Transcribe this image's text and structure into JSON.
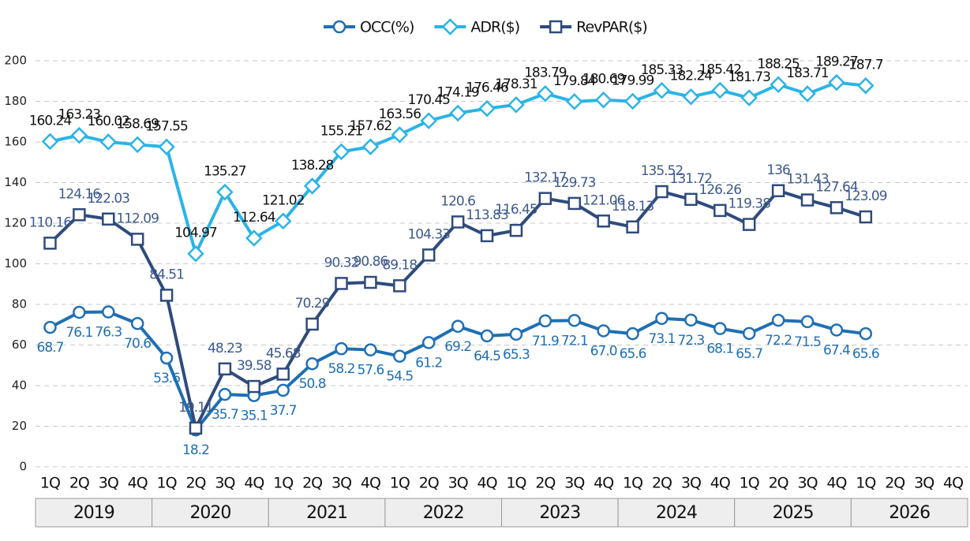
{
  "chart_data": {
    "type": "line",
    "categories": [
      "1Q",
      "2Q",
      "3Q",
      "4Q",
      "1Q",
      "2Q",
      "3Q",
      "4Q",
      "1Q",
      "2Q",
      "3Q",
      "4Q",
      "1Q",
      "2Q",
      "3Q",
      "4Q",
      "1Q",
      "2Q",
      "3Q",
      "4Q",
      "1Q",
      "2Q",
      "3Q",
      "4Q",
      "1Q",
      "2Q",
      "3Q",
      "4Q",
      "1Q",
      "2Q",
      "3Q",
      "4Q"
    ],
    "year_groups": [
      "2019",
      "2020",
      "2021",
      "2022",
      "2023",
      "2024",
      "2025",
      "2026"
    ],
    "ylim": [
      0,
      200
    ],
    "yticks": [
      0,
      20,
      40,
      60,
      80,
      100,
      120,
      140,
      160,
      180,
      200
    ],
    "grid": true,
    "series": [
      {
        "name": "OCC(%)",
        "color": "#1f6fb4",
        "marker": "circle",
        "values": [
          68.7,
          76.1,
          76.3,
          70.6,
          53.6,
          18.2,
          35.7,
          35.1,
          37.7,
          50.8,
          58.2,
          57.6,
          54.5,
          61.2,
          69.2,
          64.5,
          65.3,
          71.9,
          72.1,
          67.0,
          65.6,
          73.1,
          72.3,
          68.1,
          65.7,
          72.2,
          71.5,
          67.4,
          65.6,
          null,
          null,
          null
        ],
        "value_labels": [
          "68.7",
          "76.1",
          "76.3",
          "70.6",
          "53.6",
          "18.2",
          "35.7",
          "35.1",
          "37.7",
          "50.8",
          "58.2",
          "57.6",
          "54.5",
          "61.2",
          "69.2",
          "64.5",
          "65.3",
          "71.9",
          "72.1",
          "67.0",
          "65.6",
          "73.1",
          "72.3",
          "68.1",
          "65.7",
          "72.2",
          "71.5",
          "67.4",
          "65.6",
          null,
          null,
          null
        ]
      },
      {
        "name": "ADR($)",
        "color": "#2ab4e6",
        "marker": "diamond",
        "values": [
          160.24,
          163.23,
          160.02,
          158.69,
          157.55,
          104.97,
          135.27,
          112.64,
          121.02,
          138.28,
          155.21,
          157.62,
          163.56,
          170.45,
          174.19,
          176.46,
          178.31,
          183.79,
          179.84,
          180.69,
          179.99,
          185.33,
          182.24,
          185.42,
          181.73,
          188.25,
          183.71,
          189.27,
          187.7,
          null,
          null,
          null
        ]
      },
      {
        "name": "RevPAR($)",
        "color": "#2f4b7c",
        "marker": "square",
        "values": [
          110.16,
          124.16,
          122.03,
          112.09,
          84.51,
          19.11,
          48.23,
          39.58,
          45.68,
          70.29,
          90.32,
          90.86,
          89.18,
          104.33,
          120.6,
          113.83,
          116.45,
          132.17,
          129.73,
          121.06,
          118.13,
          135.52,
          131.72,
          126.26,
          119.38,
          136,
          131.43,
          127.64,
          123.09,
          null,
          null,
          null
        ]
      }
    ]
  }
}
